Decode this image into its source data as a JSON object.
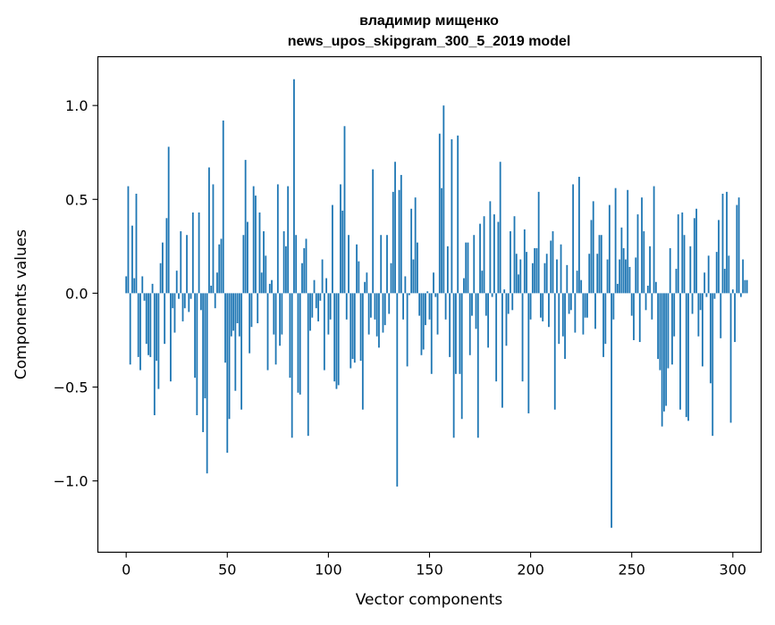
{
  "chart_data": {
    "type": "bar",
    "title": "владимир мищенко",
    "subtitle": "news_upos_skipgram_300_5_2019 model",
    "xlabel": "Vector components",
    "ylabel": "Components values",
    "xlim": [
      -14,
      314
    ],
    "ylim": [
      -1.38,
      1.26
    ],
    "xticks": [
      0,
      50,
      100,
      150,
      200,
      250,
      300
    ],
    "xtick_labels": [
      "0",
      "50",
      "100",
      "150",
      "200",
      "250",
      "300"
    ],
    "yticks": [
      -1.0,
      -0.5,
      0.0,
      0.5,
      1.0
    ],
    "ytick_labels": [
      "−1.0",
      "−0.5",
      "0.0",
      "0.5",
      "1.0"
    ],
    "grid": false,
    "color": "#1f77b4",
    "x_start": 0,
    "values": [
      0.09,
      0.57,
      -0.38,
      0.36,
      0.08,
      0.53,
      -0.34,
      -0.41,
      0.09,
      -0.04,
      -0.27,
      -0.33,
      -0.34,
      0.05,
      -0.65,
      -0.36,
      -0.51,
      0.16,
      0.27,
      -0.27,
      0.4,
      0.78,
      -0.47,
      -0.08,
      -0.21,
      0.12,
      -0.03,
      0.33,
      -0.15,
      -0.08,
      0.31,
      -0.1,
      -0.03,
      0.43,
      -0.45,
      -0.65,
      0.43,
      -0.09,
      -0.74,
      -0.56,
      -0.96,
      0.67,
      0.04,
      0.58,
      -0.08,
      0.11,
      0.26,
      0.29,
      0.92,
      -0.37,
      -0.85,
      -0.67,
      -0.23,
      -0.2,
      -0.52,
      -0.16,
      -0.23,
      -0.62,
      0.31,
      0.71,
      0.38,
      -0.32,
      -0.18,
      0.57,
      0.52,
      -0.16,
      0.43,
      0.11,
      0.33,
      0.2,
      -0.41,
      0.05,
      0.07,
      -0.22,
      -0.38,
      0.58,
      -0.28,
      -0.22,
      0.33,
      0.25,
      0.57,
      -0.45,
      -0.77,
      1.14,
      0.31,
      -0.53,
      -0.54,
      0.16,
      0.24,
      0.29,
      -0.76,
      -0.2,
      -0.13,
      0.07,
      -0.08,
      -0.15,
      -0.04,
      0.18,
      -0.41,
      0.08,
      -0.22,
      -0.14,
      0.47,
      -0.47,
      -0.51,
      -0.49,
      0.58,
      0.44,
      0.89,
      -0.14,
      0.31,
      -0.4,
      -0.35,
      -0.37,
      0.26,
      0.17,
      -0.36,
      -0.62,
      0.06,
      0.11,
      -0.22,
      -0.13,
      0.66,
      -0.14,
      -0.23,
      -0.29,
      0.31,
      -0.21,
      -0.17,
      0.31,
      -0.11,
      0.16,
      0.54,
      0.7,
      -1.03,
      0.55,
      0.63,
      -0.14,
      0.09,
      -0.39,
      -0.01,
      0.45,
      0.18,
      0.51,
      0.27,
      -0.12,
      -0.33,
      -0.3,
      -0.17,
      0.01,
      -0.14,
      -0.43,
      0.11,
      -0.02,
      -0.22,
      0.85,
      0.56,
      1.0,
      -0.14,
      0.25,
      -0.34,
      0.82,
      -0.77,
      -0.43,
      0.84,
      -0.43,
      -0.67,
      0.08,
      0.27,
      0.27,
      -0.33,
      -0.12,
      0.31,
      -0.19,
      -0.77,
      0.37,
      0.12,
      0.41,
      -0.12,
      -0.29,
      0.49,
      -0.02,
      0.42,
      -0.47,
      0.38,
      0.7,
      -0.61,
      0.02,
      -0.28,
      -0.11,
      0.33,
      -0.09,
      0.41,
      0.21,
      0.1,
      0.18,
      -0.47,
      0.34,
      0.22,
      -0.64,
      -0.14,
      0.16,
      0.24,
      0.24,
      0.54,
      -0.13,
      -0.15,
      0.16,
      0.21,
      -0.18,
      0.28,
      0.33,
      -0.62,
      0.18,
      -0.27,
      0.26,
      -0.23,
      -0.35,
      0.15,
      -0.11,
      -0.09,
      0.58,
      -0.21,
      0.12,
      0.62,
      0.07,
      -0.22,
      -0.13,
      -0.13,
      0.21,
      0.39,
      0.49,
      -0.19,
      0.21,
      0.31,
      0.31,
      -0.34,
      -0.27,
      0.18,
      0.47,
      -1.25,
      -0.14,
      0.56,
      0.05,
      0.18,
      0.35,
      0.24,
      0.18,
      0.55,
      0.14,
      -0.12,
      -0.25,
      0.19,
      0.42,
      -0.26,
      0.51,
      0.33,
      -0.09,
      0.04,
      0.25,
      -0.14,
      0.57,
      0.06,
      -0.35,
      -0.41,
      -0.71,
      -0.63,
      -0.6,
      -0.4,
      0.24,
      -0.38,
      -0.23,
      0.13,
      0.42,
      -0.62,
      0.43,
      0.31,
      -0.66,
      -0.68,
      0.25,
      -0.11,
      0.4,
      0.45,
      -0.23,
      -0.09,
      -0.39,
      0.11,
      -0.02,
      0.2,
      -0.48,
      -0.76,
      -0.03,
      0.22,
      0.39,
      -0.24,
      0.53,
      0.13,
      0.54,
      0.2,
      -0.69,
      0.02,
      -0.26,
      0.47,
      0.51,
      -0.02,
      0.18,
      0.07,
      0.07
    ]
  }
}
